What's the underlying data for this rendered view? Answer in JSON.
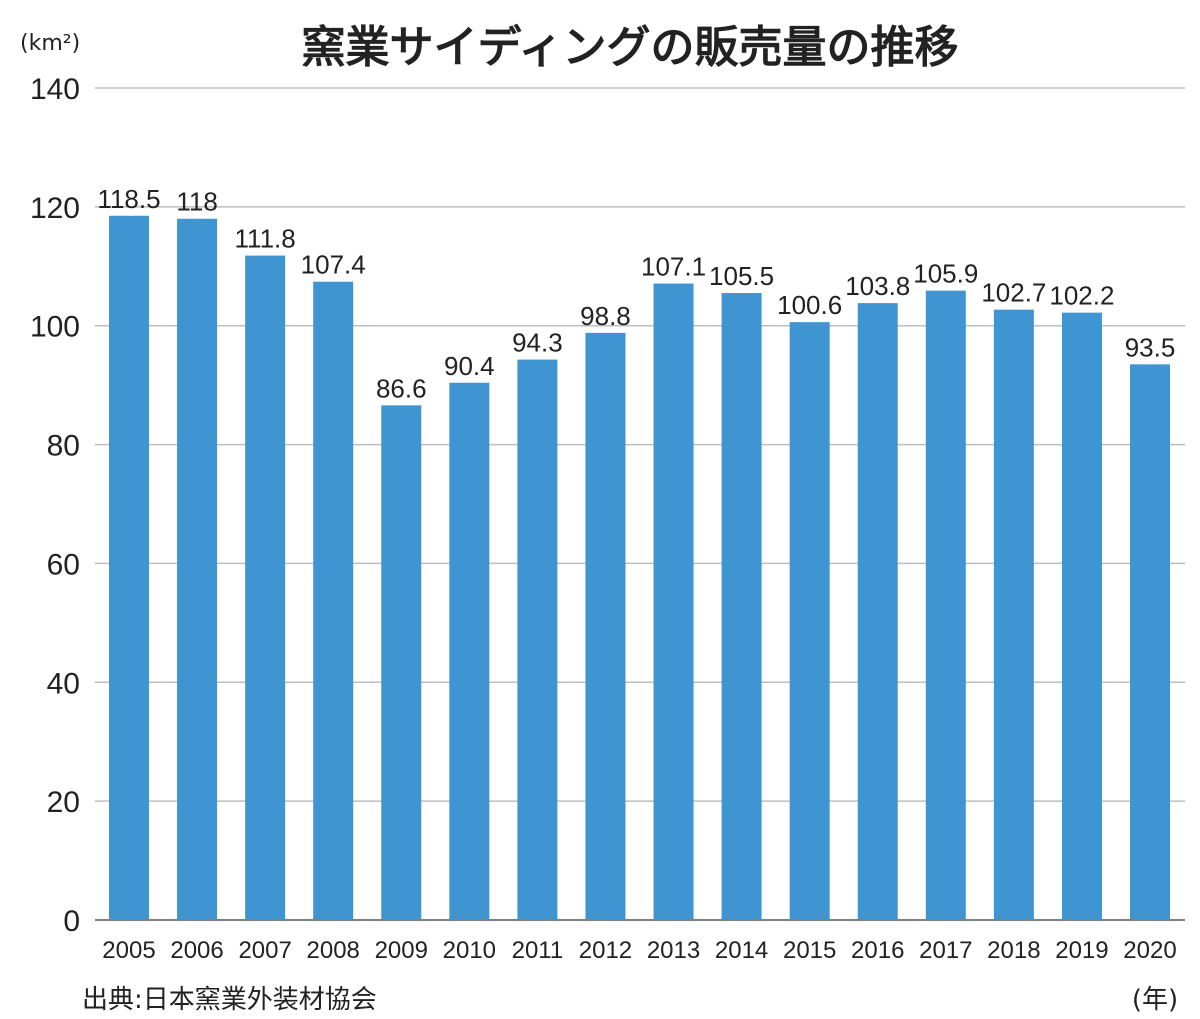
{
  "colors": {
    "bar": "#3f95d2",
    "grid": "#bfbfbf",
    "axis": "#808080",
    "text": "#222222"
  },
  "chart_data": {
    "type": "bar",
    "title": "窯業サイディングの販売量の推移",
    "ylabel": "(km²)",
    "xlabel": "(年)",
    "source": "出典:日本窯業外装材協会",
    "categories": [
      "2005",
      "2006",
      "2007",
      "2008",
      "2009",
      "2010",
      "2011",
      "2012",
      "2013",
      "2014",
      "2015",
      "2016",
      "2017",
      "2018",
      "2019",
      "2020"
    ],
    "values": [
      118.5,
      118,
      111.8,
      107.4,
      86.6,
      90.4,
      94.3,
      98.8,
      107.1,
      105.5,
      100.6,
      103.8,
      105.9,
      102.7,
      102.2,
      93.5
    ],
    "value_labels": [
      "118.5",
      "118",
      "111.8",
      "107.4",
      "86.6",
      "90.4",
      "94.3",
      "98.8",
      "107.1",
      "105.5",
      "100.6",
      "103.8",
      "105.9",
      "102.7",
      "102.2",
      "93.5"
    ],
    "ylim": [
      0,
      140
    ],
    "yticks": [
      "0",
      "20",
      "40",
      "60",
      "80",
      "100",
      "120",
      "140"
    ],
    "grid": true,
    "legend": "none"
  }
}
